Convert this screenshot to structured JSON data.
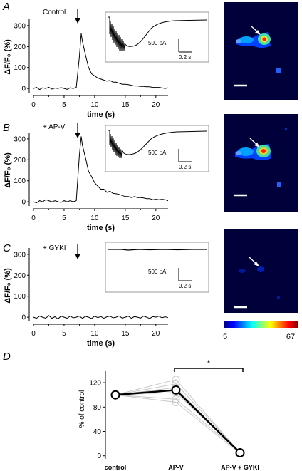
{
  "panels": {
    "A": {
      "letter": "A",
      "condition": "Control"
    },
    "B": {
      "letter": "B",
      "condition": "+ AP-V"
    },
    "C": {
      "letter": "C",
      "condition": "+ GYKI"
    },
    "D": {
      "letter": "D"
    }
  },
  "trace_axes": {
    "xlabel": "time (s)",
    "ylabel": "ΔF/F₀ (%)",
    "xticks": [
      0,
      5,
      10,
      15,
      20
    ],
    "yticks": [
      0,
      100,
      200,
      300
    ],
    "xlim": [
      0,
      22
    ],
    "ylim": [
      -20,
      320
    ],
    "stimulus_time_s": 7
  },
  "inset": {
    "current_scale": "500 pA",
    "time_scale": "0.2 s"
  },
  "colorbar": {
    "min_label": "5",
    "max_label": "67",
    "colors": [
      "#00008f",
      "#0000ff",
      "#0080ff",
      "#00ffff",
      "#80ff80",
      "#ffff00",
      "#ff8000",
      "#ff0000",
      "#800000"
    ]
  },
  "summary": {
    "ylabel": "% of control",
    "categories": [
      "control",
      "AP-V",
      "AP-V + GYKI"
    ],
    "yticks": [
      0,
      40,
      80,
      120
    ],
    "ylim": [
      -5,
      140
    ],
    "significance": "*"
  },
  "chart_data": [
    {
      "type": "line",
      "panel": "A",
      "title": "Control",
      "xlabel": "time (s)",
      "ylabel": "ΔF/F₀ (%)",
      "xlim": [
        0,
        22
      ],
      "ylim": [
        -20,
        320
      ],
      "x": [
        0,
        0.5,
        1,
        1.5,
        2,
        2.5,
        3,
        3.5,
        4,
        4.5,
        5,
        5.5,
        6,
        6.5,
        7,
        7.5,
        7.8,
        8,
        8.5,
        9,
        9.5,
        10,
        10.5,
        11,
        11.5,
        12,
        12.5,
        13,
        13.5,
        14,
        14.5,
        15,
        15.5,
        16,
        16.5,
        17,
        17.5,
        18,
        18.5,
        19,
        19.5,
        20,
        20.5,
        21,
        21.5,
        22
      ],
      "y": [
        0,
        5,
        -5,
        3,
        0,
        6,
        -3,
        2,
        0,
        4,
        0,
        -4,
        3,
        0,
        5,
        150,
        262,
        225,
        160,
        100,
        70,
        60,
        50,
        45,
        40,
        35,
        38,
        30,
        30,
        25,
        20,
        20,
        18,
        15,
        12,
        12,
        10,
        10,
        8,
        8,
        5,
        5,
        5,
        3,
        0,
        3
      ]
    },
    {
      "type": "line",
      "panel": "B",
      "title": "+ AP-V",
      "xlabel": "time (s)",
      "ylabel": "ΔF/F₀ (%)",
      "xlim": [
        0,
        22
      ],
      "ylim": [
        -20,
        320
      ],
      "x": [
        0,
        0.5,
        1,
        1.5,
        2,
        2.5,
        3,
        3.5,
        4,
        4.5,
        5,
        5.5,
        6,
        6.5,
        7,
        7.5,
        7.8,
        8,
        8.5,
        9,
        9.5,
        10,
        10.5,
        11,
        11.5,
        12,
        12.5,
        13,
        13.5,
        14,
        14.5,
        15,
        15.5,
        16,
        16.5,
        17,
        17.5,
        18,
        18.5,
        19,
        19.5,
        20,
        20.5,
        21,
        21.5,
        22
      ],
      "y": [
        0,
        -5,
        5,
        0,
        10,
        5,
        0,
        5,
        0,
        -3,
        5,
        0,
        5,
        0,
        5,
        220,
        312,
        270,
        210,
        145,
        120,
        90,
        75,
        60,
        60,
        45,
        50,
        40,
        38,
        35,
        30,
        25,
        25,
        20,
        25,
        20,
        20,
        18,
        15,
        15,
        10,
        12,
        10,
        12,
        10,
        5
      ]
    },
    {
      "type": "line",
      "panel": "C",
      "title": "+ GYKI",
      "xlabel": "time (s)",
      "ylabel": "ΔF/F₀ (%)",
      "xlim": [
        0,
        22
      ],
      "ylim": [
        -20,
        320
      ],
      "x": [
        0,
        0.5,
        1,
        1.5,
        2,
        2.5,
        3,
        3.5,
        4,
        4.5,
        5,
        5.5,
        6,
        6.5,
        7,
        7.5,
        8,
        8.5,
        9,
        9.5,
        10,
        10.5,
        11,
        11.5,
        12,
        12.5,
        13,
        13.5,
        14,
        14.5,
        15,
        15.5,
        16,
        16.5,
        17,
        17.5,
        18,
        18.5,
        19,
        19.5,
        20,
        20.5,
        21,
        21.5,
        22
      ],
      "y": [
        0,
        -5,
        5,
        0,
        -5,
        8,
        -5,
        2,
        -8,
        5,
        0,
        -5,
        5,
        -3,
        0,
        5,
        -5,
        4,
        0,
        -6,
        5,
        -2,
        3,
        -5,
        2,
        5,
        -3,
        0,
        6,
        -4,
        0,
        5,
        -5,
        3,
        0,
        -4,
        5,
        0,
        -6,
        3,
        0,
        5,
        -3,
        2,
        -2
      ]
    },
    {
      "type": "line",
      "panel": "D",
      "ylabel": "% of control",
      "categories": [
        "control",
        "AP-V",
        "AP-V + GYKI"
      ],
      "ylim": [
        -5,
        140
      ],
      "mean": [
        100,
        108,
        5
      ],
      "individual": [
        [
          100,
          125,
          5
        ],
        [
          100,
          118,
          6
        ],
        [
          100,
          112,
          4
        ],
        [
          100,
          104,
          5
        ],
        [
          100,
          93,
          6
        ],
        [
          100,
          88,
          4
        ]
      ]
    }
  ]
}
